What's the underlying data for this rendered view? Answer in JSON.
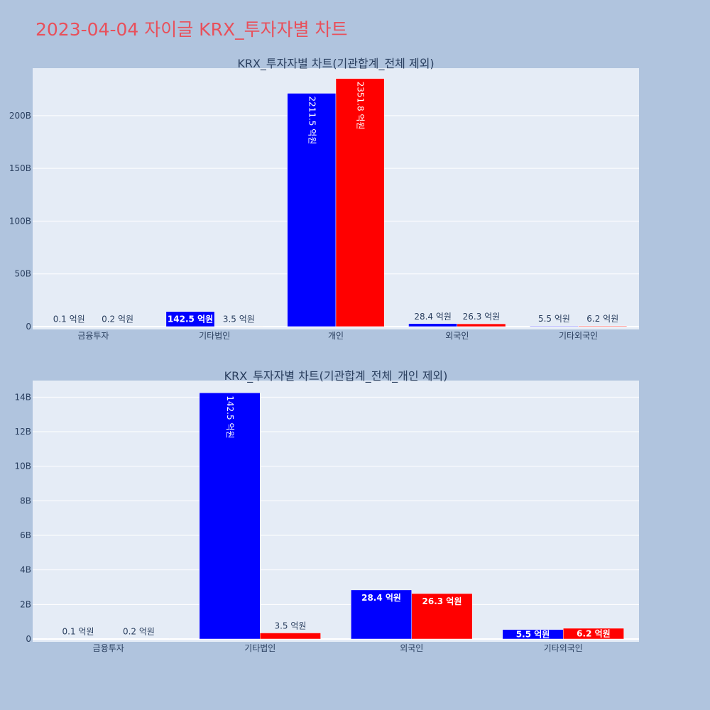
{
  "page_title": "2023-04-04 자이글 KRX_투자자별 차트",
  "colors": {
    "series_a": "#0000ff",
    "series_b": "#ff0000",
    "plot_bg": "#e5ecf6",
    "page_bg": "#b0c4de",
    "title": "#e8505b"
  },
  "chart_data": [
    {
      "type": "bar",
      "title": "KRX_투자자별 차트(기관합계_전체 제외)",
      "categories": [
        "금융투자",
        "기타법인",
        "개인",
        "외국인",
        "기타외국인"
      ],
      "series": [
        {
          "values": [
            0.01,
            14.25,
            221.15,
            2.84,
            0.55
          ],
          "labels": [
            "0.1 억원",
            "142.5 억원",
            "2211.5 억원",
            "28.4 억원",
            "5.5 억원"
          ],
          "color": "#0000ff"
        },
        {
          "values": [
            0.02,
            0.35,
            235.18,
            2.63,
            0.62
          ],
          "labels": [
            "0.2 억원",
            "3.5 억원",
            "2351.8 억원",
            "26.3 억원",
            "6.2 억원"
          ],
          "color": "#ff0000"
        }
      ],
      "yticks": [
        "0",
        "50B",
        "100B",
        "150B",
        "200B"
      ],
      "ytick_values": [
        0,
        50,
        100,
        150,
        200
      ],
      "ylim": [
        0,
        245
      ],
      "grid": true
    },
    {
      "type": "bar",
      "title": "KRX_투자자별 차트(기관합계_전체_개인 제외)",
      "categories": [
        "금융투자",
        "기타법인",
        "외국인",
        "기타외국인"
      ],
      "series": [
        {
          "values": [
            0.01,
            14.25,
            2.84,
            0.55
          ],
          "labels": [
            "0.1 억원",
            "142.5 억원",
            "28.4 억원",
            "5.5 억원"
          ],
          "color": "#0000ff"
        },
        {
          "values": [
            0.02,
            0.35,
            2.63,
            0.62
          ],
          "labels": [
            "0.2 억원",
            "3.5 억원",
            "26.3 억원",
            "6.2 억원"
          ],
          "color": "#ff0000"
        }
      ],
      "yticks": [
        "0",
        "2B",
        "4B",
        "6B",
        "8B",
        "10B",
        "12B",
        "14B"
      ],
      "ytick_values": [
        0,
        2,
        4,
        6,
        8,
        10,
        12,
        14
      ],
      "ylim": [
        0,
        14.96
      ],
      "grid": true
    }
  ]
}
